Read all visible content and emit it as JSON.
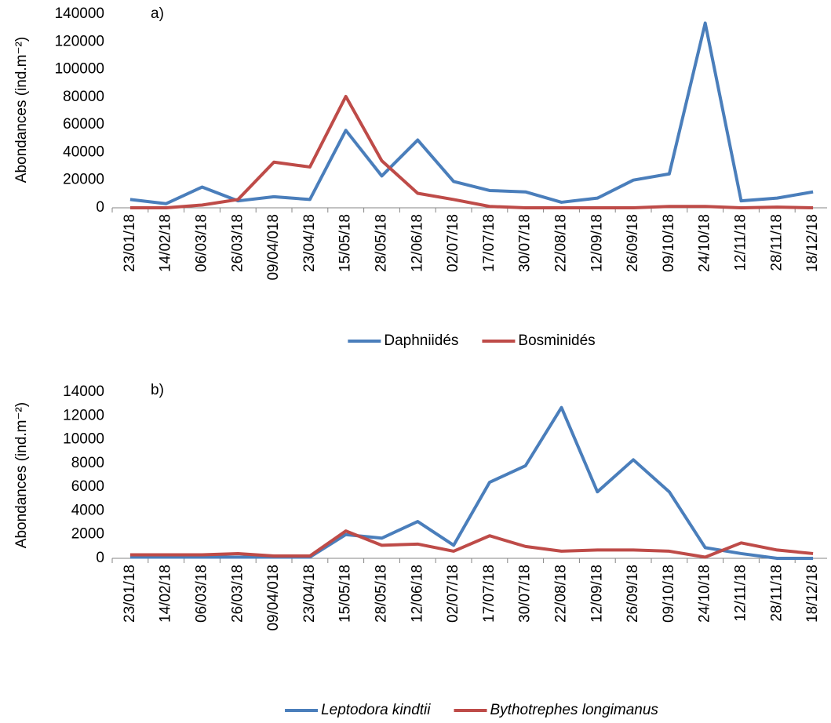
{
  "chart_data": [
    {
      "type": "line",
      "annotation": "a)",
      "y_label": "Abondances (ind.m⁻²)",
      "categories": [
        "23/01/18",
        "14/02/18",
        "06/03/18",
        "26/03/18",
        "09/04/018",
        "23/04/18",
        "15/05/18",
        "28/05/18",
        "12/06/18",
        "02/07/18",
        "17/07/18",
        "30/07/18",
        "22/08/18",
        "12/09/18",
        "26/09/18",
        "09/10/18",
        "24/10/18",
        "12/11/18",
        "28/11/18",
        "18/12/18"
      ],
      "series": [
        {
          "name": "Daphniidés",
          "color": "#4a7ebb",
          "values": [
            6000,
            3000,
            15000,
            5000,
            8000,
            6000,
            56000,
            23000,
            49000,
            19000,
            12500,
            11500,
            4000,
            7000,
            20000,
            24500,
            133500,
            5000,
            7000,
            11500
          ]
        },
        {
          "name": "Bosminidés",
          "color": "#be4b48",
          "values": [
            0,
            0,
            2000,
            6000,
            33000,
            29500,
            80500,
            34000,
            10500,
            6000,
            1000,
            0,
            0,
            0,
            0,
            1000,
            1000,
            0,
            500,
            0
          ]
        }
      ],
      "ylim": [
        0,
        140000
      ],
      "yticks": [
        0,
        20000,
        40000,
        60000,
        80000,
        100000,
        120000,
        140000
      ],
      "grid": false,
      "legend": "bottom"
    },
    {
      "type": "line",
      "annotation": "b)",
      "y_label": "Abondances (ind.m⁻²)",
      "categories": [
        "23/01/18",
        "14/02/18",
        "06/03/18",
        "26/03/18",
        "09/04/018",
        "23/04/18",
        "15/05/18",
        "28/05/18",
        "12/06/18",
        "02/07/18",
        "17/07/18",
        "30/07/18",
        "22/08/18",
        "12/09/18",
        "26/09/18",
        "09/10/18",
        "24/10/18",
        "12/11/18",
        "28/11/18",
        "18/12/18"
      ],
      "series": [
        {
          "name": "Leptodora kindtii",
          "color": "#4a7ebb",
          "values": [
            100,
            100,
            100,
            100,
            100,
            100,
            2000,
            1700,
            3100,
            1100,
            6400,
            7800,
            12700,
            5600,
            8300,
            5600,
            900,
            400,
            0,
            0
          ]
        },
        {
          "name": "Bythotrephes longimanus",
          "color": "#be4b48",
          "values": [
            300,
            300,
            300,
            400,
            200,
            200,
            2300,
            1100,
            1200,
            600,
            1900,
            1000,
            600,
            700,
            700,
            600,
            100,
            1300,
            700,
            400
          ]
        }
      ],
      "ylim": [
        0,
        14000
      ],
      "yticks": [
        0,
        2000,
        4000,
        6000,
        8000,
        10000,
        12000,
        14000
      ],
      "grid": false,
      "legend": "bottom"
    }
  ]
}
